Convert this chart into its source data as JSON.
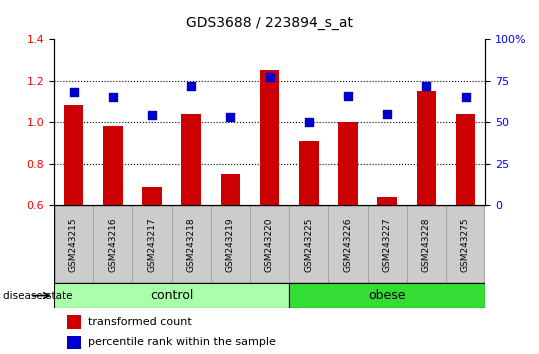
{
  "title": "GDS3688 / 223894_s_at",
  "samples": [
    "GSM243215",
    "GSM243216",
    "GSM243217",
    "GSM243218",
    "GSM243219",
    "GSM243220",
    "GSM243225",
    "GSM243226",
    "GSM243227",
    "GSM243228",
    "GSM243275"
  ],
  "transformed_count": [
    1.08,
    0.98,
    0.69,
    1.04,
    0.75,
    1.25,
    0.91,
    1.0,
    0.64,
    1.15,
    1.04
  ],
  "percentile_rank": [
    0.68,
    0.65,
    0.54,
    0.72,
    0.53,
    0.77,
    0.5,
    0.66,
    0.55,
    0.72,
    0.65
  ],
  "control_count": 6,
  "obese_count": 5,
  "ylim_left": [
    0.6,
    1.4
  ],
  "ylim_right": [
    0.0,
    1.0
  ],
  "yticks_left": [
    0.6,
    0.8,
    1.0,
    1.2,
    1.4
  ],
  "yticks_right": [
    0.0,
    0.25,
    0.5,
    0.75,
    1.0
  ],
  "ytick_labels_right": [
    "0",
    "25",
    "50",
    "75",
    "100%"
  ],
  "bar_color": "#CC0000",
  "dot_color": "#0000CC",
  "label_transformed": "transformed count",
  "label_percentile": "percentile rank within the sample",
  "disease_state_label": "disease state",
  "control_color": "#AAFFAA",
  "obese_color": "#33DD33",
  "tick_box_color": "#CCCCCC",
  "bar_width": 0.5,
  "dot_size": 30,
  "grid_yticks": [
    0.8,
    1.0,
    1.2
  ]
}
